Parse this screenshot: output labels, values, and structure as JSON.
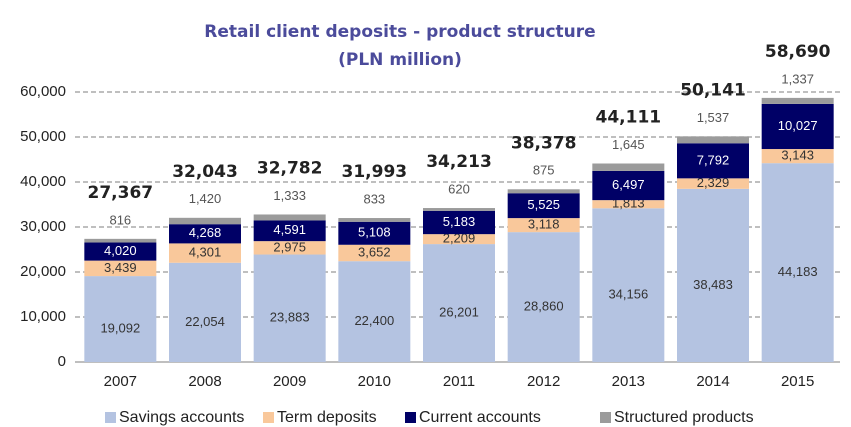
{
  "chart_data": {
    "type": "stacked_bar",
    "title": "Retail client deposits - product structure",
    "subtitle": "(PLN million)",
    "categories": [
      "2007",
      "2008",
      "2009",
      "2010",
      "2011",
      "2012",
      "2013",
      "2014",
      "2015"
    ],
    "series": [
      {
        "name": "Savings accounts",
        "color": "#b4c3e1",
        "label_color": "#333333",
        "values": [
          19092,
          22054,
          23883,
          22400,
          26201,
          28860,
          34156,
          38483,
          44183
        ],
        "value_labels": [
          "19,092",
          "22,054",
          "23,883",
          "22,400",
          "26,201",
          "28,860",
          "34,156",
          "38,483",
          "44,183"
        ]
      },
      {
        "name": "Term deposits",
        "color": "#f9c89b",
        "label_color": "#333333",
        "values": [
          3439,
          4301,
          2975,
          3652,
          2209,
          3118,
          1813,
          2329,
          3143
        ],
        "value_labels": [
          "3,439",
          "4,301",
          "2,975",
          "3,652",
          "2,209",
          "3,118",
          "1,813",
          "2,329",
          "3,143"
        ]
      },
      {
        "name": "Current accounts",
        "color": "#000066",
        "label_color": "#ffffff",
        "values": [
          4020,
          4268,
          4591,
          5108,
          5183,
          5525,
          6497,
          7792,
          10027
        ],
        "value_labels": [
          "4,020",
          "4,268",
          "4,591",
          "5,108",
          "5,183",
          "5,525",
          "6,497",
          "7,792",
          "10,027"
        ]
      },
      {
        "name": "Structured products",
        "color": "#9b9b9b",
        "label_color": "#555555",
        "values": [
          816,
          1420,
          1333,
          833,
          620,
          875,
          1645,
          1537,
          1337
        ],
        "value_labels": [
          "816",
          "1,420",
          "1,333",
          "833",
          "620",
          "875",
          "1,645",
          "1,537",
          "1,337"
        ]
      }
    ],
    "totals": [
      27367,
      32043,
      32782,
      31993,
      34213,
      38378,
      44111,
      50141,
      58690
    ],
    "total_labels": [
      "27,367",
      "32,043",
      "32,782",
      "31,993",
      "34,213",
      "38,378",
      "44,111",
      "50,141",
      "58,690"
    ],
    "ylim": [
      0,
      60000
    ],
    "yticks": [
      0,
      {
        "value": 10000,
        "label": "10,000"
      },
      {
        "value": 20000,
        "label": "20,000"
      },
      {
        "value": 30000,
        "label": "30,000"
      },
      {
        "value": 40000,
        "label": "40,000"
      },
      {
        "value": 50000,
        "label": "50,000"
      },
      {
        "value": 60000,
        "label": "60,000"
      }
    ],
    "grid": true,
    "legend": "bottom"
  }
}
